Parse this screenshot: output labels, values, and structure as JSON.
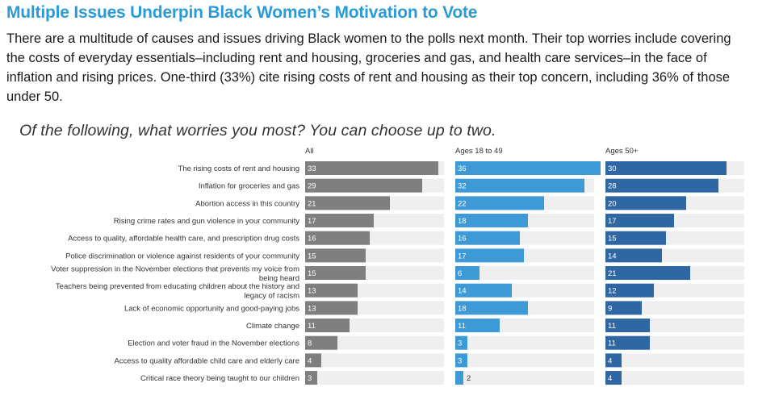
{
  "header": {
    "title": "Multiple Issues Underpin Black Women’s Motivation to Vote",
    "description": "There are a multitude of causes and issues driving Black women to the polls next month. Their top worries include covering the costs of everyday essentials–including rent and housing, groceries and gas, and health care services–in the face of inflation and rising prices. One-third (33%) cite rising costs of rent and housing as their top concern, including 36% of those under 50.",
    "question": "Of the following, what worries you most? You can choose up to two."
  },
  "chart_data": {
    "type": "bar",
    "orientation": "horizontal",
    "categories": [
      [
        "The rising costs of rent and housing"
      ],
      [
        "Inflation for groceries and gas"
      ],
      [
        "Abortion access in this country"
      ],
      [
        "Rising crime rates and gun violence in your community"
      ],
      [
        "Access to quality, affordable health care, and prescription drug costs"
      ],
      [
        "Police discrimination or violence against residents of your community"
      ],
      [
        "Voter suppression in the November elections that prevents my voice from",
        "being heard"
      ],
      [
        "Teachers being prevented from educating children about the history and",
        "legacy of racism"
      ],
      [
        "Lack of economic opportunity and good-paying jobs"
      ],
      [
        "Climate change"
      ],
      [
        "Election and voter fraud in the November elections"
      ],
      [
        "Access to quality affordable child care and elderly care"
      ],
      [
        "Critical race theory being taught to our children"
      ]
    ],
    "series": [
      {
        "name": "All",
        "color": "#7f7f7f",
        "values": [
          33,
          29,
          21,
          17,
          16,
          15,
          15,
          13,
          13,
          11,
          8,
          4,
          3
        ]
      },
      {
        "name": "Ages 18 to 49",
        "color": "#3e9ad6",
        "values": [
          36,
          32,
          22,
          18,
          16,
          17,
          6,
          14,
          18,
          11,
          3,
          3,
          2
        ]
      },
      {
        "name": "Ages 50+",
        "color": "#2f67a4",
        "values": [
          30,
          28,
          20,
          17,
          15,
          14,
          21,
          12,
          9,
          11,
          11,
          4,
          4
        ]
      }
    ],
    "xlim": [
      0,
      36
    ],
    "row_background": "#efefef",
    "grid": false
  }
}
